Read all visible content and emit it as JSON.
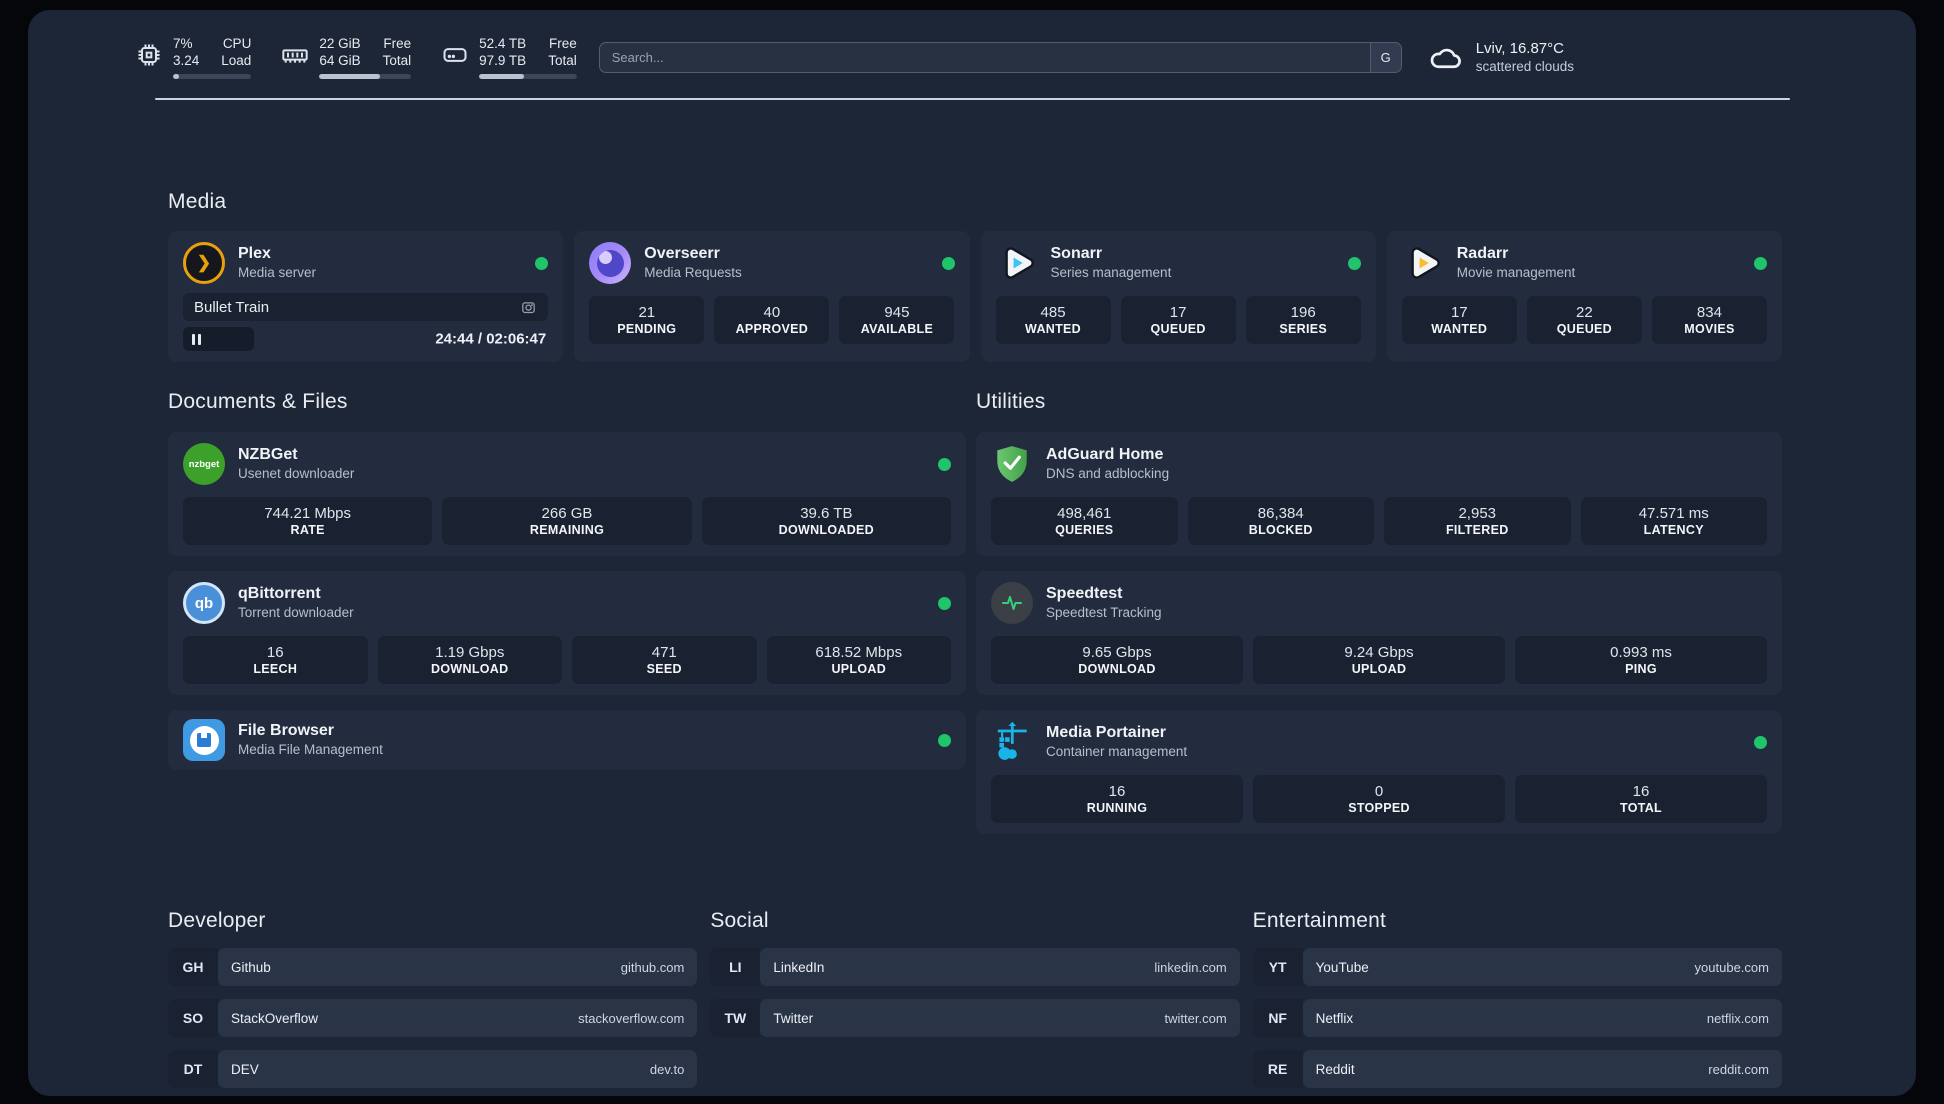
{
  "colors": {
    "status_online": "#1fc46b",
    "panel_bg": "#1d2636",
    "card_bg": "#232c3e",
    "tile_bg": "#1a2231"
  },
  "header": {
    "stats": [
      {
        "icon": "cpu-icon",
        "values": [
          "7%",
          "3.24"
        ],
        "labels": [
          "CPU",
          "Load"
        ],
        "progress_pct": 8
      },
      {
        "icon": "memory-icon",
        "values": [
          "22 GiB",
          "64 GiB"
        ],
        "labels": [
          "Free",
          "Total"
        ],
        "progress_pct": 66
      },
      {
        "icon": "disk-icon",
        "values": [
          "52.4 TB",
          "97.9 TB"
        ],
        "labels": [
          "Free",
          "Total"
        ],
        "progress_pct": 46
      }
    ],
    "search_placeholder": "Search...",
    "search_button": "G",
    "weather": {
      "location": "Lviv, 16.87°C",
      "condition": "scattered clouds"
    }
  },
  "sections": {
    "media": "Media",
    "documents": "Documents & Files",
    "utilities": "Utilities",
    "developer": "Developer",
    "social": "Social",
    "entertainment": "Entertainment"
  },
  "apps": {
    "plex": {
      "name": "Plex",
      "desc": "Media server",
      "icon_glyph": "❯",
      "now_playing": "Bullet Train",
      "time": "24:44 / 02:06:47",
      "progress_pct": 19.5
    },
    "overseerr": {
      "name": "Overseerr",
      "desc": "Media Requests",
      "stats": [
        {
          "v": "21",
          "l": "PENDING"
        },
        {
          "v": "40",
          "l": "APPROVED"
        },
        {
          "v": "945",
          "l": "AVAILABLE"
        }
      ]
    },
    "sonarr": {
      "name": "Sonarr",
      "desc": "Series management",
      "stats": [
        {
          "v": "485",
          "l": "WANTED"
        },
        {
          "v": "17",
          "l": "QUEUED"
        },
        {
          "v": "196",
          "l": "SERIES"
        }
      ]
    },
    "radarr": {
      "name": "Radarr",
      "desc": "Movie management",
      "stats": [
        {
          "v": "17",
          "l": "WANTED"
        },
        {
          "v": "22",
          "l": "QUEUED"
        },
        {
          "v": "834",
          "l": "MOVIES"
        }
      ]
    },
    "nzbget": {
      "name": "NZBGet",
      "desc": "Usenet downloader",
      "icon_text": "nzbget",
      "stats": [
        {
          "v": "744.21 Mbps",
          "l": "RATE"
        },
        {
          "v": "266 GB",
          "l": "REMAINING"
        },
        {
          "v": "39.6 TB",
          "l": "DOWNLOADED"
        }
      ]
    },
    "qbittorrent": {
      "name": "qBittorrent",
      "desc": "Torrent downloader",
      "icon_text": "qb",
      "stats": [
        {
          "v": "16",
          "l": "LEECH"
        },
        {
          "v": "1.19 Gbps",
          "l": "DOWNLOAD"
        },
        {
          "v": "471",
          "l": "SEED"
        },
        {
          "v": "618.52 Mbps",
          "l": "UPLOAD"
        }
      ]
    },
    "filebrowser": {
      "name": "File Browser",
      "desc": "Media File Management"
    },
    "adguard": {
      "name": "AdGuard Home",
      "desc": "DNS and adblocking",
      "stats": [
        {
          "v": "498,461",
          "l": "QUERIES"
        },
        {
          "v": "86,384",
          "l": "BLOCKED"
        },
        {
          "v": "2,953",
          "l": "FILTERED"
        },
        {
          "v": "47.571 ms",
          "l": "LATENCY"
        }
      ]
    },
    "speedtest": {
      "name": "Speedtest",
      "desc": "Speedtest Tracking",
      "stats": [
        {
          "v": "9.65 Gbps",
          "l": "DOWNLOAD"
        },
        {
          "v": "9.24 Gbps",
          "l": "UPLOAD"
        },
        {
          "v": "0.993 ms",
          "l": "PING"
        }
      ]
    },
    "portainer": {
      "name": "Media Portainer",
      "desc": "Container management",
      "stats": [
        {
          "v": "16",
          "l": "RUNNING"
        },
        {
          "v": "0",
          "l": "STOPPED"
        },
        {
          "v": "16",
          "l": "TOTAL"
        }
      ]
    }
  },
  "links": {
    "developer": [
      {
        "tag": "GH",
        "name": "Github",
        "url": "github.com"
      },
      {
        "tag": "SO",
        "name": "StackOverflow",
        "url": "stackoverflow.com"
      },
      {
        "tag": "DT",
        "name": "DEV",
        "url": "dev.to"
      }
    ],
    "social": [
      {
        "tag": "LI",
        "name": "LinkedIn",
        "url": "linkedin.com"
      },
      {
        "tag": "TW",
        "name": "Twitter",
        "url": "twitter.com"
      }
    ],
    "entertainment": [
      {
        "tag": "YT",
        "name": "YouTube",
        "url": "youtube.com"
      },
      {
        "tag": "NF",
        "name": "Netflix",
        "url": "netflix.com"
      },
      {
        "tag": "RE",
        "name": "Reddit",
        "url": "reddit.com"
      }
    ]
  }
}
